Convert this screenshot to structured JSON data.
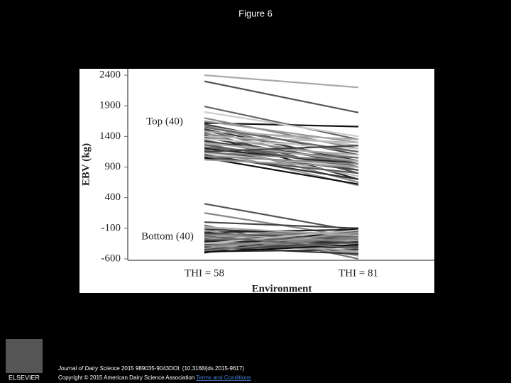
{
  "slide": {
    "title": "Figure 6",
    "journal": "Journal of Dairy Science",
    "citation": "2015 989035-9043DOI: (10.3168/jds.2015-9617)",
    "copyright": "Copyright © 2015 American Dairy Science Association",
    "link": "Terms and Conditions",
    "publisher": "ELSEVIER"
  },
  "chart_data": {
    "type": "line",
    "ylabel": "EBV (kg)",
    "xlabel": "Environment",
    "categories": [
      "THI = 58",
      "THI = 81"
    ],
    "annotations": [
      "Top (40)",
      "Bottom (40)"
    ],
    "ylim": [
      -600,
      2400
    ],
    "yticks": [
      -600,
      -100,
      400,
      900,
      1400,
      1900,
      2400
    ],
    "series": [
      {
        "color": "#aaa",
        "values": [
          2400,
          2200
        ]
      },
      {
        "color": "#555",
        "values": [
          2300,
          1790
        ]
      },
      {
        "color": "#666",
        "values": [
          1890,
          1350
        ]
      },
      {
        "color": "#111",
        "values": [
          1620,
          1560
        ]
      },
      {
        "color": "#ccc",
        "values": [
          1800,
          1400
        ]
      },
      {
        "color": "#888",
        "values": [
          1700,
          1200
        ]
      },
      {
        "color": "#999",
        "values": [
          1650,
          1300
        ]
      },
      {
        "color": "#444",
        "values": [
          1600,
          1100
        ]
      },
      {
        "color": "#777",
        "values": [
          1580,
          950
        ]
      },
      {
        "color": "#bbb",
        "values": [
          1550,
          1250
        ]
      },
      {
        "color": "#333",
        "values": [
          1520,
          1000
        ]
      },
      {
        "color": "#666",
        "values": [
          1500,
          900
        ]
      },
      {
        "color": "#aaa",
        "values": [
          1480,
          1350
        ]
      },
      {
        "color": "#555",
        "values": [
          1460,
          800
        ]
      },
      {
        "color": "#888",
        "values": [
          1440,
          1150
        ]
      },
      {
        "color": "#222",
        "values": [
          1420,
          700
        ]
      },
      {
        "color": "#999",
        "values": [
          1400,
          1050
        ]
      },
      {
        "color": "#444",
        "values": [
          1380,
          950
        ]
      },
      {
        "color": "#ccc",
        "values": [
          1360,
          1200
        ]
      },
      {
        "color": "#777",
        "values": [
          1340,
          850
        ]
      },
      {
        "color": "#333",
        "values": [
          1320,
          1000
        ]
      },
      {
        "color": "#888",
        "values": [
          1300,
          650
        ]
      },
      {
        "color": "#aaa",
        "values": [
          1280,
          1100
        ]
      },
      {
        "color": "#555",
        "values": [
          1260,
          900
        ]
      },
      {
        "color": "#bbb",
        "values": [
          1240,
          750
        ]
      },
      {
        "color": "#666",
        "values": [
          1220,
          1050
        ]
      },
      {
        "color": "#222",
        "values": [
          1200,
          950
        ]
      },
      {
        "color": "#999",
        "values": [
          1180,
          600
        ]
      },
      {
        "color": "#444",
        "values": [
          1160,
          850
        ]
      },
      {
        "color": "#777",
        "values": [
          1140,
          1000
        ]
      },
      {
        "color": "#ccc",
        "values": [
          1120,
          900
        ]
      },
      {
        "color": "#333",
        "values": [
          1100,
          700
        ]
      },
      {
        "color": "#888",
        "values": [
          1080,
          950
        ]
      },
      {
        "color": "#555",
        "values": [
          1060,
          800
        ]
      },
      {
        "color": "#111",
        "values": [
          1050,
          620
        ]
      },
      {
        "color": "#bbb",
        "values": [
          1400,
          1300
        ]
      },
      {
        "color": "#666",
        "values": [
          1550,
          1150
        ]
      },
      {
        "color": "#aaa",
        "values": [
          1300,
          1000
        ]
      },
      {
        "color": "#444",
        "values": [
          1150,
          1250
        ]
      },
      {
        "color": "#999",
        "values": [
          1020,
          900
        ]
      },
      {
        "color": "#555",
        "values": [
          300,
          -150
        ]
      },
      {
        "color": "#888",
        "values": [
          150,
          -250
        ]
      },
      {
        "color": "#444",
        "values": [
          0,
          -100
        ]
      },
      {
        "color": "#777",
        "values": [
          -50,
          -600
        ]
      },
      {
        "color": "#999",
        "values": [
          -100,
          -300
        ]
      },
      {
        "color": "#333",
        "values": [
          -120,
          -200
        ]
      },
      {
        "color": "#aaa",
        "values": [
          -150,
          -450
        ]
      },
      {
        "color": "#222",
        "values": [
          -170,
          -120
        ]
      },
      {
        "color": "#666",
        "values": [
          -200,
          -350
        ]
      },
      {
        "color": "#bbb",
        "values": [
          -220,
          -250
        ]
      },
      {
        "color": "#555",
        "values": [
          -240,
          -400
        ]
      },
      {
        "color": "#888",
        "values": [
          -260,
          -150
        ]
      },
      {
        "color": "#333",
        "values": [
          -280,
          -300
        ]
      },
      {
        "color": "#999",
        "values": [
          -300,
          -500
        ]
      },
      {
        "color": "#444",
        "values": [
          -320,
          -200
        ]
      },
      {
        "color": "#777",
        "values": [
          -340,
          -350
        ]
      },
      {
        "color": "#aaa",
        "values": [
          -360,
          -250
        ]
      },
      {
        "color": "#222",
        "values": [
          -380,
          -420
        ]
      },
      {
        "color": "#666",
        "values": [
          -400,
          -150
        ]
      },
      {
        "color": "#bbb",
        "values": [
          -420,
          -300
        ]
      },
      {
        "color": "#555",
        "values": [
          -440,
          -380
        ]
      },
      {
        "color": "#888",
        "values": [
          -460,
          -200
        ]
      },
      {
        "color": "#333",
        "values": [
          -480,
          -450
        ]
      },
      {
        "color": "#111",
        "values": [
          -500,
          -100
        ]
      },
      {
        "color": "#999",
        "values": [
          -130,
          -550
        ]
      },
      {
        "color": "#444",
        "values": [
          -180,
          -280
        ]
      },
      {
        "color": "#777",
        "values": [
          -210,
          -180
        ]
      },
      {
        "color": "#aaa",
        "values": [
          -250,
          -480
        ]
      },
      {
        "color": "#666",
        "values": [
          -290,
          -230
        ]
      },
      {
        "color": "#222",
        "values": [
          -310,
          -330
        ]
      },
      {
        "color": "#bbb",
        "values": [
          -350,
          -130
        ]
      },
      {
        "color": "#555",
        "values": [
          -370,
          -400
        ]
      },
      {
        "color": "#888",
        "values": [
          -390,
          -270
        ]
      },
      {
        "color": "#333",
        "values": [
          -410,
          -520
        ]
      },
      {
        "color": "#999",
        "values": [
          -430,
          -170
        ]
      },
      {
        "color": "#444",
        "values": [
          -450,
          -320
        ]
      },
      {
        "color": "#777",
        "values": [
          -470,
          -240
        ]
      },
      {
        "color": "#111",
        "values": [
          -490,
          -370
        ]
      },
      {
        "color": "#aaa",
        "values": [
          -80,
          -220
        ]
      },
      {
        "color": "#666",
        "values": [
          -230,
          -430
        ]
      }
    ]
  }
}
